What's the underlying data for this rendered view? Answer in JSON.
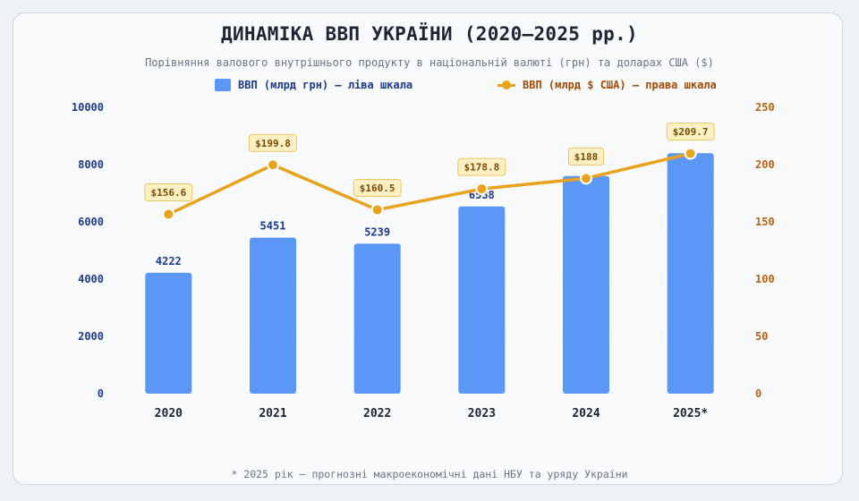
{
  "title": "ДИНАМІКА ВВП УКРАЇНИ (2020–2025 рр.)",
  "subtitle": "Порівняння валового внутрішнього продукту в національній валюті (грн) та доларах США ($)",
  "footnote": "* 2025 рік — прогнозні макроекономічні дані НБУ та уряду України",
  "colors": {
    "bar": "#5b97f4",
    "line": "#e8a21c",
    "left_axis": "#1e3a8a",
    "right_axis": "#b8620f"
  },
  "chart_data": {
    "type": "bar",
    "categories": [
      "2020",
      "2021",
      "2022",
      "2023",
      "2024",
      "2025*"
    ],
    "series": [
      {
        "name": "ВВП (млрд грн) — ліва шкала",
        "type": "bar",
        "axis": "left",
        "values": [
          4222,
          5451,
          5239,
          6538,
          7600,
          8400
        ],
        "labels": [
          "4222",
          "5451",
          "5239",
          "6538",
          "",
          ""
        ]
      },
      {
        "name": "ВВП (млрд $ США) — права шкала",
        "type": "line",
        "axis": "right",
        "values": [
          156.6,
          199.8,
          160.5,
          178.8,
          188,
          209.7
        ],
        "labels": [
          "$156.6",
          "$199.8",
          "$160.5",
          "$178.8",
          "$188",
          "$209.7"
        ]
      }
    ],
    "y_left": {
      "min": 0,
      "max": 10000,
      "ticks": [
        "0",
        "2000",
        "4000",
        "6000",
        "8000",
        "10000"
      ]
    },
    "y_right": {
      "min": 0,
      "max": 250,
      "ticks": [
        "0",
        "50",
        "100",
        "150",
        "200",
        "250"
      ]
    },
    "grid": true,
    "legend": "top-center"
  }
}
